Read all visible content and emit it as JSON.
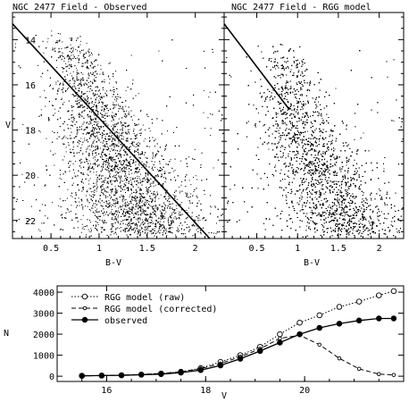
{
  "chart_data": [
    {
      "type": "scatter",
      "title": "NGC 2477 Field - Observed",
      "xlabel": "B-V",
      "ylabel": "V",
      "x_ticks": [
        "0.5",
        "1",
        "1.5",
        "2"
      ],
      "y_ticks": [
        "14",
        "16",
        "18",
        "20",
        "22"
      ],
      "xlim": [
        0.1,
        2.3
      ],
      "ylim": [
        22.8,
        12.8
      ],
      "y_inverted": true,
      "cut_line": {
        "x": [
          0.1,
          2.15
        ],
        "y": [
          13.3,
          22.8
        ]
      },
      "density_ridge": {
        "v": [
          13.5,
          14.0,
          15.0,
          16.0,
          17.0,
          18.0,
          19.0,
          20.0,
          21.0,
          22.0,
          22.6
        ],
        "bv": [
          0.55,
          0.65,
          0.75,
          0.85,
          0.95,
          1.05,
          1.15,
          1.25,
          1.35,
          1.45,
          1.5
        ]
      },
      "grid": false
    },
    {
      "type": "scatter",
      "title": "NGC 2477 Field - RGG model",
      "xlabel": "B-V",
      "ylabel": "",
      "x_ticks": [
        "0.5",
        "1",
        "1.5",
        "2"
      ],
      "y_ticks": [],
      "xlim": [
        0.1,
        2.3
      ],
      "ylim": [
        22.8,
        12.8
      ],
      "y_inverted": true,
      "cut_line": {
        "x": [
          0.1,
          0.9
        ],
        "y": [
          13.3,
          17.1
        ]
      },
      "density_ridge": {
        "v": [
          14.0,
          15.0,
          16.0,
          17.0,
          18.0,
          19.0,
          20.0,
          21.0,
          22.0,
          22.6
        ],
        "bv": [
          0.8,
          0.85,
          0.9,
          0.95,
          1.05,
          1.15,
          1.3,
          1.45,
          1.6,
          1.7
        ]
      },
      "grid": false
    },
    {
      "type": "line",
      "title": "",
      "xlabel": "V",
      "ylabel": "N",
      "x_ticks": [
        "16",
        "18",
        "20"
      ],
      "y_ticks": [
        "0",
        "1000",
        "2000",
        "3000",
        "4000"
      ],
      "xlim": [
        15.0,
        22.0
      ],
      "ylim": [
        -250,
        4300
      ],
      "legend_position": "top-left",
      "series": [
        {
          "name": "RGG model (raw)",
          "marker": "open-circle",
          "line": "dotted",
          "x": [
            15.5,
            15.9,
            16.3,
            16.7,
            17.1,
            17.5,
            17.9,
            18.3,
            18.7,
            19.1,
            19.5,
            19.9,
            20.3,
            20.7,
            21.1,
            21.5,
            21.8
          ],
          "y": [
            20,
            30,
            50,
            80,
            130,
            210,
            380,
            680,
            1000,
            1400,
            2000,
            2550,
            2900,
            3300,
            3550,
            3850,
            4050
          ]
        },
        {
          "name": "RGG model (corrected)",
          "marker": "open-circle-small",
          "line": "dashed",
          "x": [
            15.5,
            15.9,
            16.3,
            16.7,
            17.1,
            17.5,
            17.9,
            18.3,
            18.7,
            19.1,
            19.5,
            19.9,
            20.3,
            20.7,
            21.1,
            21.5,
            21.8
          ],
          "y": [
            20,
            30,
            50,
            80,
            130,
            210,
            360,
            600,
            930,
            1300,
            1800,
            1950,
            1500,
            850,
            350,
            100,
            60
          ]
        },
        {
          "name": "observed",
          "marker": "filled-circle",
          "line": "solid",
          "x": [
            15.5,
            15.9,
            16.3,
            16.7,
            17.1,
            17.5,
            17.9,
            18.3,
            18.7,
            19.1,
            19.5,
            19.9,
            20.3,
            20.7,
            21.1,
            21.5,
            21.8
          ],
          "y": [
            20,
            30,
            40,
            70,
            100,
            170,
            290,
            510,
            830,
            1200,
            1600,
            2000,
            2300,
            2500,
            2650,
            2750,
            2750
          ]
        }
      ]
    }
  ]
}
